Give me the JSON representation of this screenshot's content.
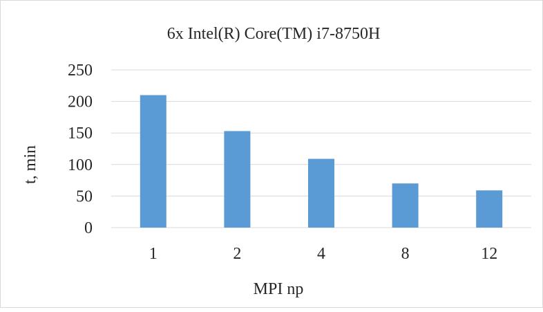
{
  "chart_data": {
    "type": "bar",
    "title": "6x Intel(R) Core(TM) i7-8750H",
    "xlabel": "MPI np",
    "ylabel": "t, min",
    "categories": [
      "1",
      "2",
      "4",
      "8",
      "12"
    ],
    "values": [
      210,
      153,
      109,
      70,
      59
    ],
    "ylim": [
      0,
      250
    ],
    "yticks": [
      "0",
      "50",
      "100",
      "150",
      "200",
      "250"
    ],
    "grid": true,
    "legend": "none",
    "bar_color": "#5b9bd5",
    "grid_color": "#d9d9d9"
  }
}
